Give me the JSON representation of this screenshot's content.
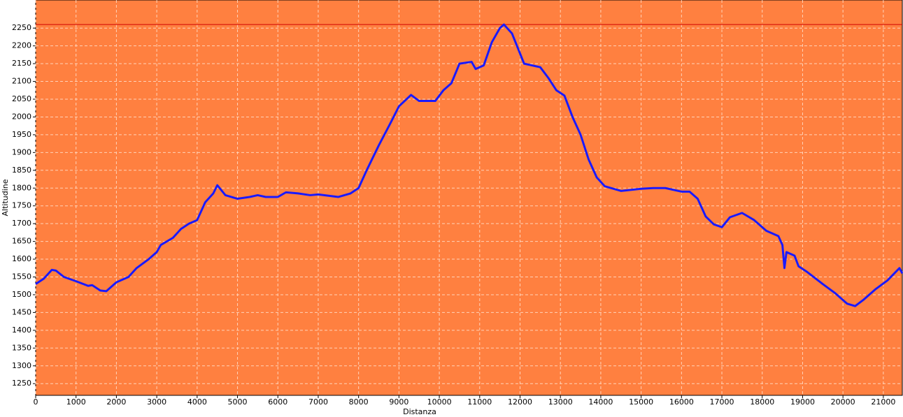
{
  "chart_data": {
    "type": "line",
    "x_label": "Distanza",
    "y_label": "Altitudine",
    "background": "#ff8040",
    "grid": true,
    "reference_line": 2260,
    "reference_color": "#d00000",
    "xlim": [
      0,
      21470
    ],
    "ylim": [
      1217,
      2329
    ],
    "xticks": [
      0,
      1000,
      2000,
      3000,
      4000,
      5000,
      6000,
      7000,
      8000,
      9000,
      10000,
      11000,
      12000,
      13000,
      14000,
      15000,
      16000,
      17000,
      18000,
      19000,
      20000,
      21000
    ],
    "yticks": [
      1250,
      1300,
      1350,
      1400,
      1450,
      1500,
      1550,
      1600,
      1650,
      1700,
      1750,
      1800,
      1850,
      1900,
      1950,
      2000,
      2050,
      2100,
      2150,
      2200,
      2250
    ],
    "x": [
      0,
      200,
      400,
      500,
      700,
      1000,
      1300,
      1400,
      1600,
      1750,
      2000,
      2300,
      2500,
      2800,
      3000,
      3100,
      3400,
      3600,
      3800,
      4000,
      4200,
      4400,
      4500,
      4700,
      5000,
      5300,
      5500,
      5700,
      6000,
      6200,
      6500,
      6800,
      7000,
      7500,
      7800,
      8000,
      8200,
      8500,
      8800,
      9000,
      9300,
      9500,
      9900,
      10100,
      10300,
      10500,
      10800,
      10900,
      11100,
      11300,
      11500,
      11600,
      11800,
      12100,
      12300,
      12500,
      12700,
      12900,
      13100,
      13300,
      13500,
      13700,
      13900,
      14100,
      14500,
      15000,
      15300,
      15600,
      16000,
      16200,
      16400,
      16600,
      16800,
      17000,
      17200,
      17500,
      17800,
      18100,
      18400,
      18500,
      18550,
      18600,
      18800,
      18900,
      19100,
      19500,
      19800,
      20100,
      20300,
      20500,
      20800,
      21100,
      21400,
      21470
    ],
    "series": [
      {
        "color": "#1a1aff",
        "values": [
          1530,
          1545,
          1570,
          1568,
          1550,
          1538,
          1525,
          1527,
          1512,
          1510,
          1535,
          1550,
          1575,
          1600,
          1620,
          1640,
          1660,
          1685,
          1700,
          1710,
          1760,
          1785,
          1808,
          1780,
          1770,
          1775,
          1780,
          1775,
          1775,
          1788,
          1785,
          1780,
          1782,
          1775,
          1785,
          1800,
          1850,
          1920,
          1985,
          2030,
          2062,
          2045,
          2045,
          2075,
          2095,
          2150,
          2155,
          2135,
          2145,
          2210,
          2250,
          2260,
          2235,
          2150,
          2145,
          2140,
          2110,
          2075,
          2060,
          2000,
          1950,
          1880,
          1830,
          1805,
          1792,
          1798,
          1800,
          1800,
          1790,
          1790,
          1770,
          1720,
          1698,
          1690,
          1718,
          1730,
          1710,
          1680,
          1665,
          1640,
          1575,
          1620,
          1610,
          1580,
          1565,
          1530,
          1505,
          1475,
          1468,
          1485,
          1515,
          1540,
          1575,
          1560
        ]
      }
    ]
  }
}
